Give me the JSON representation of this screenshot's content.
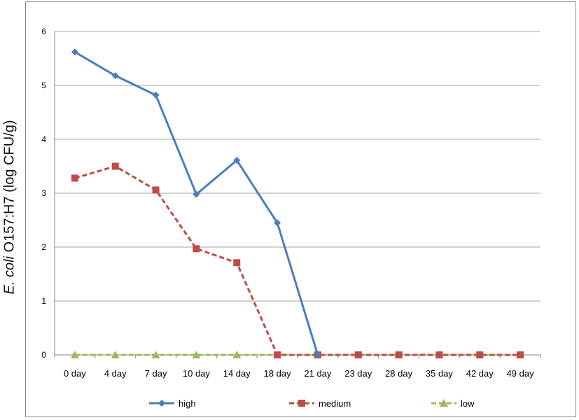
{
  "chart_data": {
    "type": "line",
    "title": "",
    "ylabel_italic": "E. coli",
    "ylabel_rest": " O157:H7  (log CFU/g)",
    "xlabel": "",
    "categories": [
      "0 day",
      "4 day",
      "7 day",
      "10 day",
      "14 day",
      "18 day",
      "21 day",
      "23 day",
      "28 day",
      "35 day",
      "42 day",
      "49 day"
    ],
    "ylim": [
      0,
      6
    ],
    "yticks": [
      "0",
      "1",
      "2",
      "3",
      "4",
      "5",
      "6"
    ],
    "grid": true,
    "legend_position": "bottom",
    "series": [
      {
        "name": "high",
        "color": "#4a7ebb",
        "marker": "diamond",
        "dash": "solid",
        "values": [
          5.62,
          5.18,
          4.82,
          2.98,
          3.61,
          2.45,
          0,
          null,
          null,
          null,
          null,
          null
        ]
      },
      {
        "name": "medium",
        "color": "#be4b48",
        "marker": "square",
        "dash": "dashed",
        "values": [
          3.28,
          3.5,
          3.06,
          1.97,
          1.71,
          0,
          0,
          0,
          0,
          0,
          0,
          0
        ]
      },
      {
        "name": "low",
        "color": "#9bbb59",
        "marker": "triangle",
        "dash": "dashed",
        "values": [
          0,
          0,
          0,
          0,
          0,
          0,
          0,
          0,
          0,
          0,
          0,
          0
        ]
      }
    ]
  }
}
